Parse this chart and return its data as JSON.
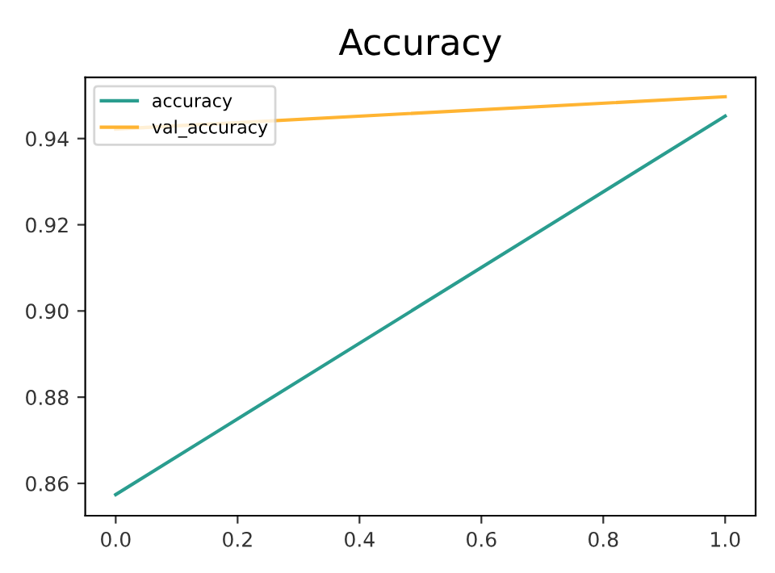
{
  "chart_data": {
    "type": "line",
    "title": "Accuracy",
    "x": [
      0,
      1
    ],
    "series": [
      {
        "name": "accuracy",
        "color": "#2a9d8f",
        "values": [
          0.8574,
          0.9452
        ]
      },
      {
        "name": "val_accuracy",
        "color": "#ffb432",
        "values": [
          0.9422,
          0.9497
        ]
      }
    ],
    "xlim": [
      -0.05,
      1.05
    ],
    "xticks": [
      {
        "value": 0,
        "label": "0.0"
      },
      0.2,
      0.4,
      0.6,
      0.8,
      {
        "value": 1,
        "label": "1.0"
      }
    ],
    "ylim": [
      0.8525,
      0.9542
    ],
    "yticks": [
      0.86,
      0.88,
      {
        "value": 0.9,
        "label": "0.90"
      },
      0.92,
      0.94
    ],
    "legend": "top left",
    "grid": false
  }
}
